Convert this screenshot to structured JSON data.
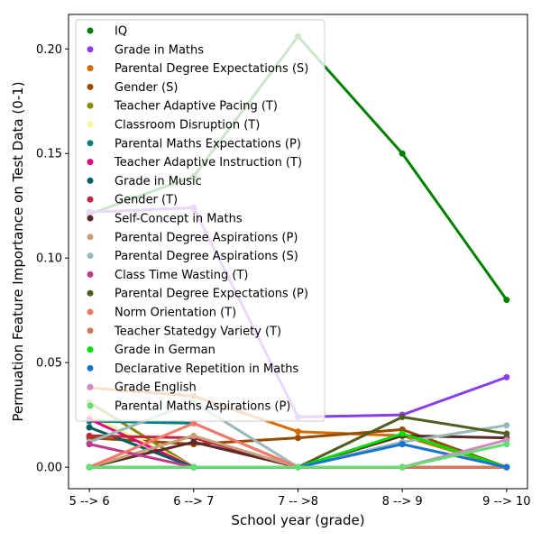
{
  "chart_data": {
    "type": "line",
    "xlabel": "School year (grade)",
    "ylabel": "Permuation Feature Importance on Test Data (0-1)",
    "categories": [
      "5 --> 6",
      "6 --> 7",
      "7 -- >8",
      "8 --> 9",
      "9 --> 10"
    ],
    "ylim": [
      -0.0103,
      0.2165
    ],
    "yticks": [
      0.0,
      0.05,
      0.1,
      0.15,
      0.2
    ],
    "ytick_labels": [
      "0.00",
      "0.05",
      "0.10",
      "0.15",
      "0.20"
    ],
    "grid": false,
    "legend_position": "top-left",
    "series": [
      {
        "name": "IQ",
        "color": "#008000",
        "values": [
          0.121,
          0.139,
          0.206,
          0.15,
          0.08
        ]
      },
      {
        "name": "Grade in Maths",
        "color": "#8a3cf0",
        "values": [
          0.122,
          0.124,
          0.024,
          0.025,
          0.043
        ]
      },
      {
        "name": "Parental Degree Expectations (S)",
        "color": "#d96a00",
        "values": [
          0.038,
          0.034,
          0.017,
          0.015,
          0.0
        ]
      },
      {
        "name": "Gender (S)",
        "color": "#9a4a00",
        "values": [
          0.014,
          0.011,
          0.014,
          0.018,
          0.0
        ]
      },
      {
        "name": "Teacher Adaptive Pacing (T)",
        "color": "#8a8a00",
        "values": [
          0.031,
          0.0,
          0.0,
          0.0,
          0.0
        ]
      },
      {
        "name": "Classroom Disruption (T)",
        "color": "#fff59a",
        "values": [
          0.025,
          0.0,
          0.0,
          0.0,
          0.0
        ]
      },
      {
        "name": "Parental Maths Expectations (P)",
        "color": "#008080",
        "values": [
          0.022,
          0.021,
          0.0,
          0.0,
          0.0
        ]
      },
      {
        "name": "Teacher Adaptive Instruction (T)",
        "color": "#e6007e",
        "values": [
          0.023,
          0.0,
          0.0,
          0.0,
          0.0
        ]
      },
      {
        "name": "Grade in Music",
        "color": "#005f5f",
        "values": [
          0.019,
          0.0,
          0.0,
          0.0,
          0.0
        ]
      },
      {
        "name": "Gender (T)",
        "color": "#c0283c",
        "values": [
          0.015,
          0.014,
          0.0,
          0.0,
          0.0
        ]
      },
      {
        "name": "Self-Concept in Maths",
        "color": "#5a2a2a",
        "values": [
          0.0,
          0.012,
          0.0,
          0.015,
          0.014
        ]
      },
      {
        "name": "Parental Degree Aspirations (P)",
        "color": "#c8a07a",
        "values": [
          0.0,
          0.015,
          0.0,
          0.0,
          0.0
        ]
      },
      {
        "name": "Parental Degree Aspirations (S)",
        "color": "#97b9b9",
        "values": [
          0.012,
          0.031,
          0.0,
          0.012,
          0.02
        ]
      },
      {
        "name": "Class Time Wasting (T)",
        "color": "#c03a8a",
        "values": [
          0.011,
          0.0,
          0.0,
          0.0,
          0.0
        ]
      },
      {
        "name": "Parental Degree Expectations (P)",
        "color": "#4f5f1f",
        "values": [
          0.0,
          0.0,
          0.0,
          0.024,
          0.016
        ]
      },
      {
        "name": "Norm Orientation (T)",
        "color": "#f87868",
        "values": [
          0.0,
          0.021,
          0.0,
          0.0,
          0.0
        ]
      },
      {
        "name": "Teacher Statedgy Variety (T)",
        "color": "#d2795a",
        "values": [
          0.0,
          0.0,
          0.0,
          0.0,
          0.0
        ]
      },
      {
        "name": "Grade in German",
        "color": "#00e000",
        "values": [
          0.0,
          0.0,
          0.0,
          0.016,
          0.0
        ]
      },
      {
        "name": "Declarative Repetition in Maths",
        "color": "#1874d0",
        "values": [
          0.0,
          0.0,
          0.0,
          0.011,
          0.0
        ]
      },
      {
        "name": "Grade English",
        "color": "#d08ac0",
        "values": [
          0.0,
          0.0,
          0.0,
          0.0,
          0.013
        ]
      },
      {
        "name": "Parental Maths Aspirations (P)",
        "color": "#60e070",
        "values": [
          0.0,
          0.0,
          0.0,
          0.0,
          0.011
        ]
      }
    ]
  }
}
